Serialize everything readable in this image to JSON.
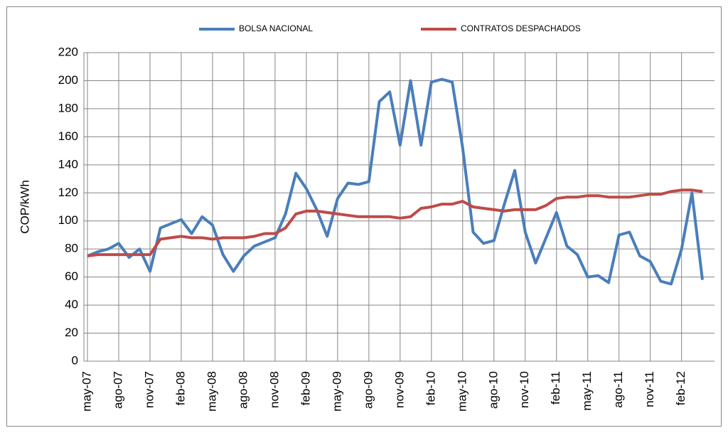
{
  "chart_data": {
    "type": "line",
    "y_label": "COP/kWh",
    "categories": [
      "may-07",
      null,
      null,
      "ago-07",
      null,
      null,
      "nov-07",
      null,
      null,
      "feb-08",
      null,
      null,
      "may-08",
      null,
      null,
      "ago-08",
      null,
      null,
      "nov-08",
      null,
      null,
      "feb-09",
      null,
      null,
      "may-09",
      null,
      null,
      "ago-09",
      null,
      null,
      "nov-09",
      null,
      null,
      "feb-10",
      null,
      null,
      "may-10",
      null,
      null,
      "ago-10",
      null,
      null,
      "nov-10",
      null,
      null,
      "feb-11",
      null,
      null,
      "may-11",
      null,
      null,
      "ago-11",
      null,
      null,
      "nov-11",
      null,
      null,
      "feb-12",
      null,
      null
    ],
    "series": [
      {
        "name": "BOLSA NACIONAL",
        "color": "#4a7ebb",
        "values": [
          75,
          78,
          80,
          84,
          74,
          80,
          64,
          95,
          98,
          101,
          91,
          103,
          97,
          76,
          64,
          75,
          82,
          85,
          88,
          105,
          134,
          123,
          108,
          89,
          116,
          127,
          126,
          128,
          185,
          192,
          154,
          200,
          154,
          199,
          201,
          199,
          152,
          92,
          84,
          86,
          112,
          136,
          92,
          70,
          88,
          106,
          82,
          76,
          60,
          61,
          56,
          90,
          92,
          75,
          71,
          57,
          55,
          80,
          120,
          58
        ]
      },
      {
        "name": "CONTRATOS DESPACHADOS",
        "color": "#be4b48",
        "values": [
          75,
          76,
          76,
          76,
          76,
          76,
          76,
          87,
          88,
          89,
          88,
          88,
          87,
          88,
          88,
          88,
          89,
          91,
          91,
          95,
          105,
          107,
          107,
          106,
          105,
          104,
          103,
          103,
          103,
          103,
          102,
          103,
          109,
          110,
          112,
          112,
          114,
          110,
          109,
          108,
          107,
          108,
          108,
          108,
          111,
          116,
          117,
          117,
          118,
          118,
          117,
          117,
          117,
          118,
          119,
          119,
          121,
          122,
          122,
          121
        ]
      }
    ],
    "ylim": [
      0,
      220
    ],
    "yticks": [
      0,
      20,
      40,
      60,
      80,
      100,
      120,
      140,
      160,
      180,
      200,
      220
    ],
    "grid": true,
    "legend": "top"
  }
}
